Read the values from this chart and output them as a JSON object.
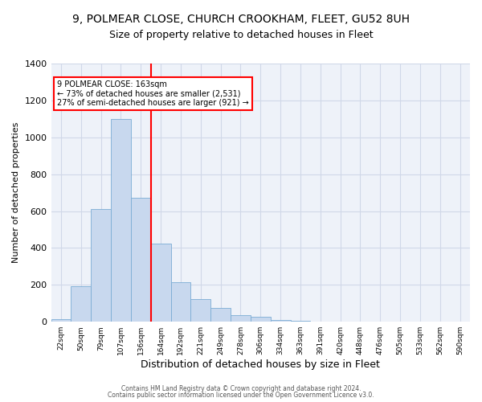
{
  "title": "9, POLMEAR CLOSE, CHURCH CROOKHAM, FLEET, GU52 8UH",
  "subtitle": "Size of property relative to detached houses in Fleet",
  "xlabel": "Distribution of detached houses by size in Fleet",
  "ylabel": "Number of detached properties",
  "bar_color": "#c8d8ee",
  "bar_edge_color": "#7bacd4",
  "bin_labels": [
    "22sqm",
    "50sqm",
    "79sqm",
    "107sqm",
    "136sqm",
    "164sqm",
    "192sqm",
    "221sqm",
    "249sqm",
    "278sqm",
    "306sqm",
    "334sqm",
    "363sqm",
    "391sqm",
    "420sqm",
    "448sqm",
    "476sqm",
    "505sqm",
    "533sqm",
    "562sqm",
    "590sqm"
  ],
  "bar_values": [
    15,
    193,
    610,
    1100,
    670,
    425,
    215,
    125,
    75,
    35,
    25,
    10,
    5,
    2,
    0,
    0,
    0,
    0,
    0,
    0,
    0
  ],
  "ylim": [
    0,
    1400
  ],
  "yticks": [
    0,
    200,
    400,
    600,
    800,
    1000,
    1200,
    1400
  ],
  "property_line_x": 5.0,
  "property_line_label": "9 POLMEAR CLOSE: 163sqm",
  "annotation_line1": "← 73% of detached houses are smaller (2,531)",
  "annotation_line2": "27% of semi-detached houses are larger (921) →",
  "box_color": "red",
  "vline_color": "red",
  "footer1": "Contains HM Land Registry data © Crown copyright and database right 2024.",
  "footer2": "Contains public sector information licensed under the Open Government Licence v3.0.",
  "bg_color": "#eef2f9",
  "grid_color": "#d0d8e8",
  "title_fontsize": 10,
  "subtitle_fontsize": 9
}
